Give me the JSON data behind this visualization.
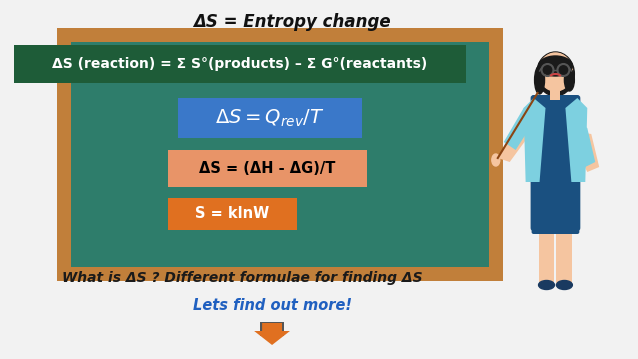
{
  "title": "ΔS = Entropy change",
  "bg_color": "#f2f2f2",
  "chalkboard_color": "#2e7d6b",
  "chalkboard_frame_color": "#c17f3a",
  "formula1_text": "ΔS (reaction) = Σ S°(products) – Σ G°(reactants)",
  "formula1_bg": "#1e5c38",
  "formula1_text_color": "#ffffff",
  "formula2_bg": "#3a78c9",
  "formula2_text_color": "#ffffff",
  "formula3_text": "ΔS = (ΔH - ΔG)/T",
  "formula3_bg": "#e89468",
  "formula3_text_color": "#000000",
  "formula4_text": "S = klnW",
  "formula4_bg": "#e07020",
  "formula4_text_color": "#ffffff",
  "bottom_text": "What is ΔS ? Different formulae for finding ΔS",
  "bottom_text_color": "#1a1a1a",
  "cta_text": "Lets find out more!",
  "cta_color": "#2060c0",
  "arrow_color": "#e07020",
  "skin_color": "#f5c5a0",
  "hair_color": "#1a1a1a",
  "dress_color": "#1a5080",
  "jacket_color": "#7dd0e0",
  "shoe_color": "#1a3a60",
  "pointer_color": "#8b4513"
}
